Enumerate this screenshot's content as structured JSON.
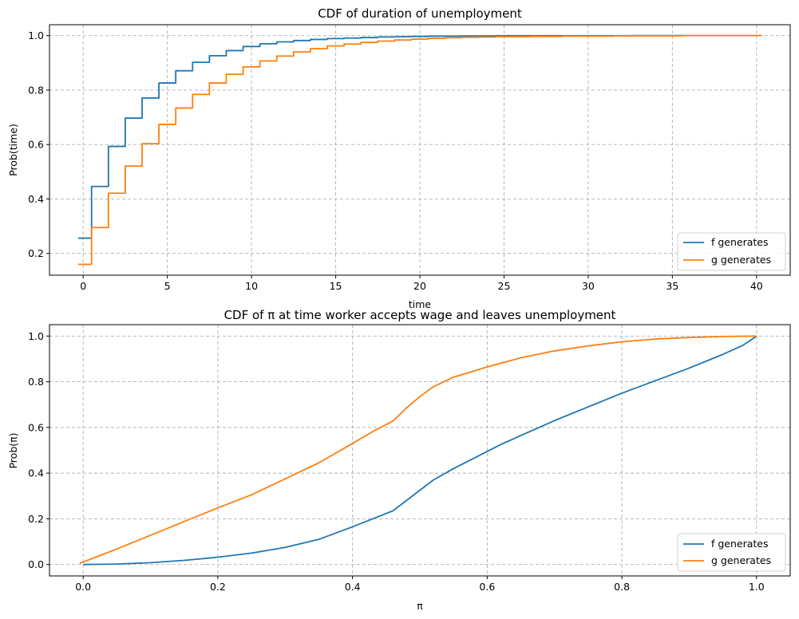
{
  "chart_data": [
    {
      "type": "line",
      "step": true,
      "title": "CDF of duration of unemployment",
      "xlabel": "time",
      "ylabel": "Prob(time)",
      "xlim": [
        -2,
        42
      ],
      "ylim": [
        0.12,
        1.04
      ],
      "xticks": [
        0,
        5,
        10,
        15,
        20,
        25,
        30,
        35,
        40
      ],
      "yticks": [
        0.2,
        0.4,
        0.6,
        0.8,
        1.0
      ],
      "ytick_format": 1,
      "grid": true,
      "legend_loc": "lower-right",
      "series": [
        {
          "name": "f generates",
          "color": "#1f77b4",
          "x": [
            -0.3,
            0.5,
            1.5,
            2.5,
            3.5,
            4.5,
            5.5,
            6.5,
            7.5,
            8.5,
            9.5,
            10.5,
            11.5,
            12.5,
            13.5,
            14.5,
            15.5,
            16.5,
            17.5,
            18.5,
            19.5,
            20.5,
            22.5,
            24.5,
            27.5,
            32.5,
            40.3
          ],
          "y": [
            0.256,
            0.446,
            0.593,
            0.697,
            0.771,
            0.826,
            0.871,
            0.902,
            0.926,
            0.945,
            0.96,
            0.97,
            0.977,
            0.982,
            0.986,
            0.989,
            0.991,
            0.993,
            0.995,
            0.996,
            0.997,
            0.998,
            0.999,
            0.9995,
            0.9998,
            1.0,
            1.0
          ]
        },
        {
          "name": "g generates",
          "color": "#ff7f0e",
          "x": [
            -0.3,
            0.5,
            1.5,
            2.5,
            3.5,
            4.5,
            5.5,
            6.5,
            7.5,
            8.5,
            9.5,
            10.5,
            11.5,
            12.5,
            13.5,
            14.5,
            15.5,
            16.5,
            17.5,
            18.5,
            19.5,
            20.5,
            21.5,
            22.5,
            23.5,
            24.5,
            26.5,
            28.5,
            31.5,
            35.5,
            40.3
          ],
          "y": [
            0.16,
            0.295,
            0.421,
            0.521,
            0.603,
            0.674,
            0.734,
            0.784,
            0.826,
            0.858,
            0.885,
            0.907,
            0.925,
            0.94,
            0.952,
            0.962,
            0.969,
            0.975,
            0.98,
            0.984,
            0.987,
            0.99,
            0.992,
            0.994,
            0.995,
            0.996,
            0.997,
            0.998,
            0.999,
            1.0,
            1.0
          ]
        }
      ]
    },
    {
      "type": "line",
      "title": "CDF of π at time worker accepts wage and leaves unemployment",
      "xlabel": "π",
      "ylabel": "Prob(π)",
      "xlim": [
        -0.05,
        1.05
      ],
      "ylim": [
        -0.05,
        1.05
      ],
      "xticks": [
        0.0,
        0.2,
        0.4,
        0.6,
        0.8,
        1.0
      ],
      "yticks": [
        0.0,
        0.2,
        0.4,
        0.6,
        0.8,
        1.0
      ],
      "ytick_format": 1,
      "grid": true,
      "legend_loc": "lower-right",
      "series": [
        {
          "name": "f generates",
          "color": "#1f77b4",
          "x": [
            0.0,
            0.05,
            0.1,
            0.15,
            0.2,
            0.25,
            0.3,
            0.35,
            0.4,
            0.43,
            0.46,
            0.48,
            0.5,
            0.52,
            0.55,
            0.58,
            0.6,
            0.62,
            0.65,
            0.7,
            0.75,
            0.8,
            0.85,
            0.9,
            0.95,
            0.98,
            1.0
          ],
          "y": [
            0.0,
            0.002,
            0.008,
            0.018,
            0.032,
            0.05,
            0.075,
            0.11,
            0.165,
            0.2,
            0.235,
            0.28,
            0.325,
            0.37,
            0.42,
            0.465,
            0.495,
            0.525,
            0.565,
            0.63,
            0.69,
            0.75,
            0.805,
            0.86,
            0.92,
            0.96,
            1.0
          ]
        },
        {
          "name": "g generates",
          "color": "#ff7f0e",
          "x": [
            -0.005,
            0.05,
            0.1,
            0.15,
            0.2,
            0.25,
            0.3,
            0.35,
            0.4,
            0.43,
            0.46,
            0.48,
            0.5,
            0.52,
            0.55,
            0.6,
            0.65,
            0.7,
            0.75,
            0.8,
            0.85,
            0.9,
            0.95,
            1.0
          ],
          "y": [
            0.005,
            0.068,
            0.128,
            0.188,
            0.248,
            0.305,
            0.375,
            0.445,
            0.53,
            0.582,
            0.628,
            0.685,
            0.735,
            0.778,
            0.82,
            0.865,
            0.905,
            0.935,
            0.957,
            0.975,
            0.987,
            0.994,
            0.998,
            1.0
          ]
        }
      ]
    }
  ]
}
